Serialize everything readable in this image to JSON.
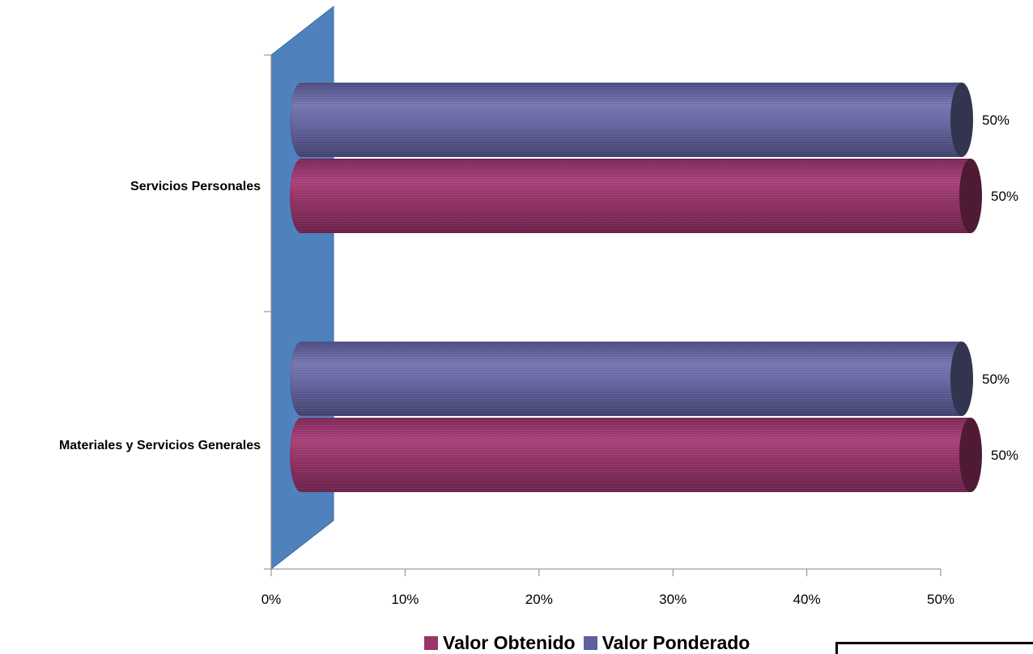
{
  "chart_data": {
    "type": "bar",
    "orientation": "horizontal",
    "style": "3d-cylinder",
    "categories": [
      "Servicios Personales",
      "Materiales y Servicios Generales"
    ],
    "series": [
      {
        "name": "Valor Ponderado",
        "values": [
          0.5,
          0.5
        ],
        "color": "#6060a0"
      },
      {
        "name": "Valor Obtenido",
        "values": [
          0.5,
          0.5
        ],
        "color": "#9a3469"
      }
    ],
    "data_labels": {
      "Servicios Personales": {
        "Valor Ponderado": "50%",
        "Valor Obtenido": "50%"
      },
      "Materiales y Servicios Generales": {
        "Valor Ponderado": "50%",
        "Valor Obtenido": "50%"
      }
    },
    "x_ticks": [
      "0%",
      "10%",
      "20%",
      "30%",
      "40%",
      "50%"
    ],
    "xlim": [
      0,
      0.5
    ],
    "grid": false,
    "legend_position": "bottom",
    "colors": {
      "wall": "#4f81bd",
      "axis": "#868686"
    }
  },
  "legend": [
    {
      "label": "Valor Obtenido",
      "color": "#9a3469"
    },
    {
      "label": "Valor Ponderado",
      "color": "#6060a0"
    }
  ]
}
